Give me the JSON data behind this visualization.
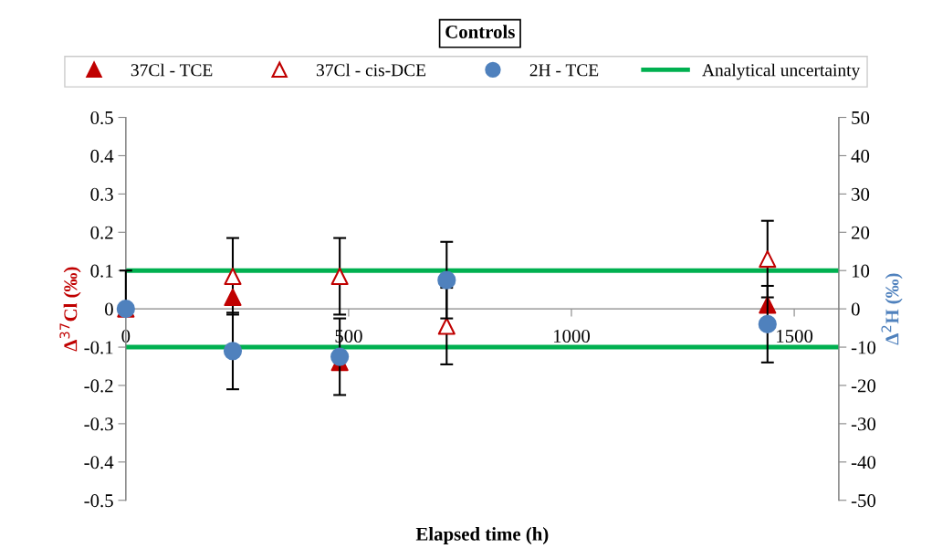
{
  "chart_data": {
    "type": "scatter",
    "title": "Controls",
    "xlabel": "Elapsed time (h)",
    "ylabel": "Δ$^{37}$Cl (‰)",
    "y2label": "Δ$^{2}$H (‰)",
    "xlim": [
      0,
      1600
    ],
    "xticks": [
      0,
      500,
      1000,
      1500
    ],
    "ylim": [
      -0.5,
      0.5
    ],
    "yticks": [
      -0.5,
      -0.4,
      -0.3,
      -0.2,
      -0.1,
      0,
      0.1,
      0.2,
      0.3,
      0.4,
      0.5
    ],
    "y2lim": [
      -50,
      50
    ],
    "y2ticks": [
      -50,
      -40,
      -30,
      -20,
      -10,
      0,
      10,
      20,
      30,
      40,
      50
    ],
    "legend": "top",
    "series": [
      {
        "name": "37Cl - TCE",
        "color": "#c00000",
        "marker": "triangle",
        "x": [
          0,
          240,
          480,
          1440
        ],
        "values": [
          0,
          0.03,
          -0.14,
          0.01
        ]
      },
      {
        "name": "37Cl - cis-DCE",
        "color": "#c00000",
        "marker": "triangle-open",
        "x": [
          240,
          480,
          720,
          1440
        ],
        "values": [
          0.085,
          0.085,
          -0.045,
          0.13
        ],
        "errors": [
          0.1,
          0.1,
          0.1,
          0.1
        ]
      },
      {
        "name": "2H - TCE",
        "color": "#4f81bd",
        "marker": "circle",
        "axis": "y2",
        "x": [
          0,
          240,
          480,
          720,
          1440
        ],
        "values": [
          0,
          -11,
          -12.5,
          7.5,
          -4
        ],
        "errors": [
          [
            0,
            10
          ],
          10,
          10,
          10,
          10
        ]
      }
    ],
    "ref_lines": [
      {
        "axis": "y",
        "value": 0.1,
        "label": "Analytical uncertainty",
        "color": "#00b050",
        "line_style": "solid"
      },
      {
        "axis": "y",
        "value": -0.1,
        "color": "#00b050",
        "line_style": "solid"
      }
    ]
  }
}
